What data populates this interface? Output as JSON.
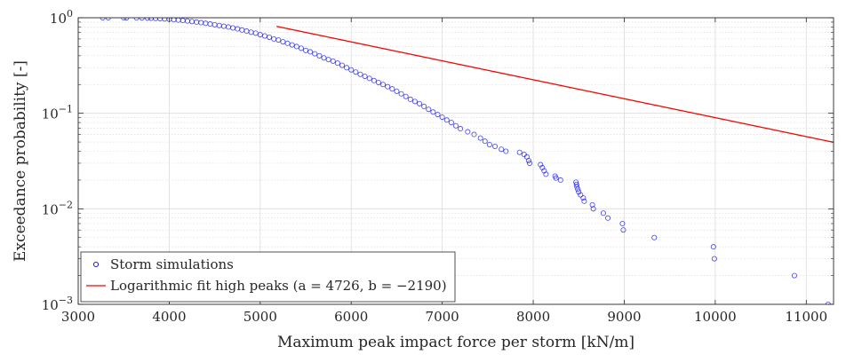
{
  "chart_data": {
    "type": "scatter",
    "title": "",
    "xlabel": "Maximum peak impact force per storm [kN/m]",
    "ylabel": "Exceedance probability [-]",
    "xlim": [
      3000,
      11300
    ],
    "ylim": [
      0.001,
      1
    ],
    "yscale": "log",
    "grid": true,
    "legend_position": "bottom-left",
    "x_ticks": [
      "3000",
      "4000",
      "5000",
      "6000",
      "7000",
      "8000",
      "9000",
      "10000",
      "11000"
    ],
    "y_ticks": [
      {
        "base": "10",
        "exp": "0",
        "value": 1
      },
      {
        "base": "10",
        "exp": "−1",
        "value": 0.1
      },
      {
        "base": "10",
        "exp": "−2",
        "value": 0.01
      },
      {
        "base": "10",
        "exp": "−3",
        "value": 0.001
      }
    ],
    "series": [
      {
        "name": "Storm simulations",
        "kind": "marker",
        "marker": "circle-open",
        "color": "#0000ff",
        "points": [
          [
            3270,
            1.0
          ],
          [
            3330,
            1.0
          ],
          [
            3500,
            0.999
          ],
          [
            3530,
            0.998
          ],
          [
            3640,
            0.997
          ],
          [
            3700,
            0.995
          ],
          [
            3760,
            0.993
          ],
          [
            3800,
            0.99
          ],
          [
            3850,
            0.985
          ],
          [
            3900,
            0.98
          ],
          [
            3950,
            0.972
          ],
          [
            4000,
            0.962
          ],
          [
            4050,
            0.955
          ],
          [
            4100,
            0.945
          ],
          [
            4150,
            0.935
          ],
          [
            4200,
            0.925
          ],
          [
            4250,
            0.913
          ],
          [
            4300,
            0.9
          ],
          [
            4350,
            0.888
          ],
          [
            4400,
            0.874
          ],
          [
            4450,
            0.86
          ],
          [
            4500,
            0.846
          ],
          [
            4550,
            0.83
          ],
          [
            4600,
            0.815
          ],
          [
            4650,
            0.8
          ],
          [
            4700,
            0.782
          ],
          [
            4750,
            0.765
          ],
          [
            4800,
            0.745
          ],
          [
            4850,
            0.725
          ],
          [
            4900,
            0.705
          ],
          [
            4950,
            0.69
          ],
          [
            5000,
            0.665
          ],
          [
            5050,
            0.645
          ],
          [
            5100,
            0.625
          ],
          [
            5150,
            0.6
          ],
          [
            5200,
            0.585
          ],
          [
            5250,
            0.56
          ],
          [
            5300,
            0.54
          ],
          [
            5350,
            0.52
          ],
          [
            5400,
            0.5
          ],
          [
            5450,
            0.48
          ],
          [
            5500,
            0.455
          ],
          [
            5550,
            0.44
          ],
          [
            5600,
            0.42
          ],
          [
            5650,
            0.4
          ],
          [
            5700,
            0.38
          ],
          [
            5750,
            0.365
          ],
          [
            5800,
            0.352
          ],
          [
            5850,
            0.335
          ],
          [
            5900,
            0.318
          ],
          [
            5950,
            0.3
          ],
          [
            6000,
            0.285
          ],
          [
            6050,
            0.27
          ],
          [
            6100,
            0.256
          ],
          [
            6150,
            0.244
          ],
          [
            6200,
            0.232
          ],
          [
            6250,
            0.22
          ],
          [
            6300,
            0.21
          ],
          [
            6350,
            0.2
          ],
          [
            6400,
            0.19
          ],
          [
            6450,
            0.18
          ],
          [
            6500,
            0.17
          ],
          [
            6550,
            0.16
          ],
          [
            6600,
            0.15
          ],
          [
            6650,
            0.14
          ],
          [
            6700,
            0.133
          ],
          [
            6750,
            0.126
          ],
          [
            6800,
            0.118
          ],
          [
            6850,
            0.11
          ],
          [
            6900,
            0.103
          ],
          [
            6950,
            0.097
          ],
          [
            7000,
            0.091
          ],
          [
            7050,
            0.085
          ],
          [
            7100,
            0.08
          ],
          [
            7150,
            0.074
          ],
          [
            7200,
            0.069
          ],
          [
            7280,
            0.064
          ],
          [
            7350,
            0.06
          ],
          [
            7420,
            0.055
          ],
          [
            7470,
            0.051
          ],
          [
            7520,
            0.047
          ],
          [
            7580,
            0.045
          ],
          [
            7650,
            0.042
          ],
          [
            7700,
            0.04
          ],
          [
            7850,
            0.039
          ],
          [
            7900,
            0.037
          ],
          [
            7930,
            0.035
          ],
          [
            7950,
            0.032
          ],
          [
            7960,
            0.03
          ],
          [
            8080,
            0.029
          ],
          [
            8100,
            0.027
          ],
          [
            8120,
            0.025
          ],
          [
            8140,
            0.023
          ],
          [
            8240,
            0.022
          ],
          [
            8250,
            0.021
          ],
          [
            8300,
            0.02
          ],
          [
            8470,
            0.019
          ],
          [
            8475,
            0.018
          ],
          [
            8480,
            0.017
          ],
          [
            8490,
            0.016
          ],
          [
            8500,
            0.015
          ],
          [
            8520,
            0.014
          ],
          [
            8550,
            0.013
          ],
          [
            8560,
            0.012
          ],
          [
            8650,
            0.011
          ],
          [
            8660,
            0.01
          ],
          [
            8770,
            0.009
          ],
          [
            8820,
            0.008
          ],
          [
            8980,
            0.007
          ],
          [
            8990,
            0.006
          ],
          [
            9330,
            0.005
          ],
          [
            9980,
            0.004
          ],
          [
            9990,
            0.003
          ],
          [
            10870,
            0.002
          ],
          [
            11240,
            0.001
          ]
        ]
      },
      {
        "name": "Logarithmic fit high peaks (a = 4726, b = −2190)",
        "kind": "line",
        "color": "#ff0000",
        "a": 4726,
        "b": -2190,
        "x_range": [
          5180,
          11300
        ]
      }
    ]
  }
}
